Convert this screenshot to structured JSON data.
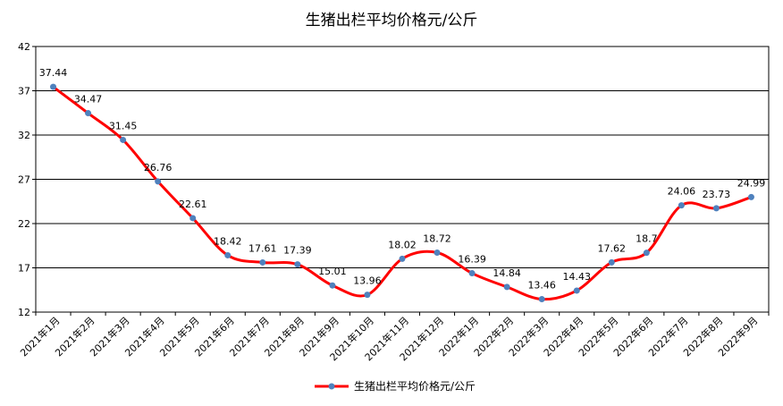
{
  "chart_data": {
    "type": "line",
    "title": "生猪出栏平均价格元/公斤",
    "xlabel": "",
    "ylabel": "",
    "categories": [
      "2021年1月",
      "2021年2月",
      "2021年3月",
      "2021年4月",
      "2021年5月",
      "2021年6月",
      "2021年7月",
      "2021年8月",
      "2021年9月",
      "2021年10月",
      "2021年11月",
      "2021年12月",
      "2022年1月",
      "2022年2月",
      "2022年3月",
      "2022年4月",
      "2022年5月",
      "2022年6月",
      "2022年7月",
      "2022年8月",
      "2022年9月"
    ],
    "series": [
      {
        "name": "生猪出栏平均价格元/公斤",
        "values": [
          37.44,
          34.47,
          31.45,
          26.76,
          22.61,
          18.42,
          17.61,
          17.39,
          15.01,
          13.96,
          18.02,
          18.72,
          16.39,
          14.84,
          13.46,
          14.43,
          17.62,
          18.7,
          24.06,
          23.73,
          24.99
        ],
        "value_labels": [
          "37.44",
          "34.47",
          "31.45",
          "26.76",
          "22.61",
          "18.42",
          "17.61",
          "17.39",
          "15.01",
          "13.96",
          "18.02",
          "18.72",
          "16.39",
          "14.84",
          "13.46",
          "14.43",
          "17.62",
          "18.7",
          "24.06",
          "23.73",
          "24.99"
        ],
        "line_color": "#ff0000",
        "marker_color": "#4f81bd"
      }
    ],
    "ylim": [
      12,
      42
    ],
    "yticks": [
      "12",
      "17",
      "22",
      "27",
      "32",
      "37",
      "42"
    ],
    "grid": true,
    "legend": "bottom",
    "smooth": true
  }
}
